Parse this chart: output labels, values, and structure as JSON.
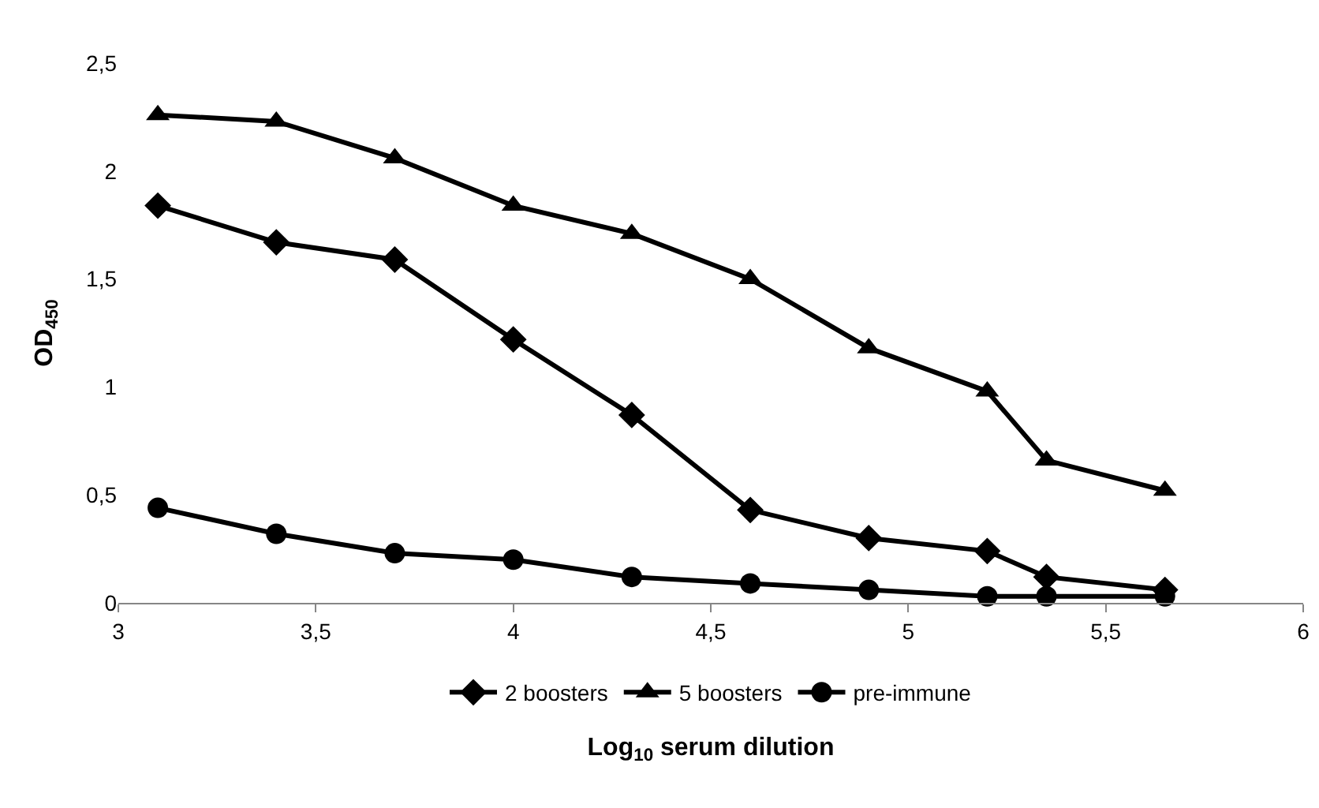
{
  "chart_data": {
    "type": "line",
    "xlabel": "Log$_{10}$ serum dilution",
    "ylabel": "OD$_{450}$",
    "x": [
      3.1,
      3.4,
      3.7,
      4.0,
      4.3,
      4.6,
      4.9,
      5.2,
      5.35,
      5.65
    ],
    "series": [
      {
        "name": "2 boosters",
        "color": "#000000",
        "marker": "diamond",
        "values": [
          1.84,
          1.67,
          1.59,
          1.22,
          0.87,
          0.43,
          0.3,
          0.24,
          0.12,
          0.06
        ]
      },
      {
        "name": "5 boosters",
        "color": "#000000",
        "marker": "triangle",
        "values": [
          2.26,
          2.23,
          2.06,
          1.84,
          1.71,
          1.5,
          1.18,
          0.98,
          0.66,
          0.52
        ]
      },
      {
        "name": "pre-immune",
        "color": "#000000",
        "marker": "circle",
        "values": [
          0.44,
          0.32,
          0.23,
          0.2,
          0.12,
          0.09,
          0.06,
          0.03,
          0.03,
          0.03
        ]
      }
    ],
    "xlim": [
      3,
      6
    ],
    "xticks": [
      3,
      {
        "value": 3.5,
        "label": "3,5"
      },
      4,
      {
        "value": 4.5,
        "label": "4,5"
      },
      5,
      {
        "value": 5.5,
        "label": "5,5"
      },
      6
    ],
    "ylim": [
      0,
      2.5
    ],
    "yticks": [
      0,
      {
        "value": 0.5,
        "label": "0,5"
      },
      1,
      {
        "value": 1.5,
        "label": "1,5"
      },
      2,
      {
        "value": 2.5,
        "label": "2,5"
      }
    ],
    "grid": false,
    "legend": "bottom",
    "line_style": "solid"
  }
}
